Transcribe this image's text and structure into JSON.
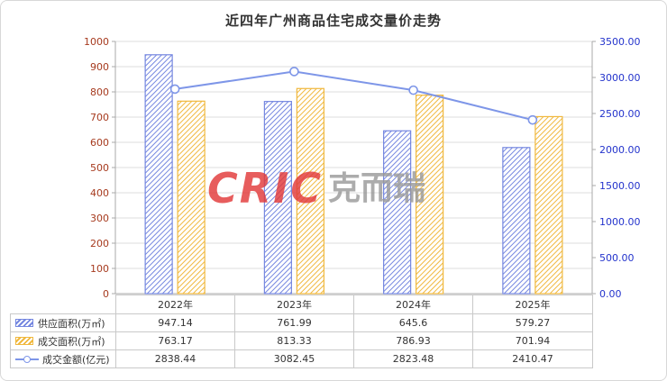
{
  "window": {
    "title": "近四年广州商品住宅成交量价走势"
  },
  "watermark": {
    "brand": "CRIC",
    "brand_cn": "克而瑞"
  },
  "colors": {
    "supply": "#7587e0",
    "deal": "#f0b83e",
    "line": "#7e96e8",
    "left_axis": "#a63a1e",
    "right_axis": "#2333cc",
    "grid": "#dcdcdc",
    "axis_line": "#a9a9a9",
    "table_border": "#c9c9c9",
    "title_text": "#333333"
  },
  "chart_data": {
    "type": "bar+line",
    "title": "近四年广州商品住宅成交量价走势",
    "categories": [
      "2022年",
      "2023年",
      "2024年",
      "2025年"
    ],
    "series": [
      {
        "name": "供应面积(万㎡)",
        "type": "bar",
        "axis": "left",
        "color": "#7587e0",
        "values": [
          947.14,
          761.99,
          645.6,
          579.27
        ]
      },
      {
        "name": "成交面积(万㎡)",
        "type": "bar",
        "axis": "left",
        "color": "#f0b83e",
        "values": [
          763.17,
          813.33,
          786.93,
          701.94
        ]
      },
      {
        "name": "成交金额(亿元)",
        "type": "line",
        "axis": "right",
        "color": "#7e96e8",
        "values": [
          2838.44,
          3082.45,
          2823.48,
          2410.47
        ]
      }
    ],
    "left_axis": {
      "min": 0,
      "max": 1000,
      "step": 100,
      "decimals": 0
    },
    "right_axis": {
      "min": 0,
      "max": 3500,
      "step": 500,
      "decimals": 2
    },
    "grid": true,
    "legend_position": "table-left"
  }
}
